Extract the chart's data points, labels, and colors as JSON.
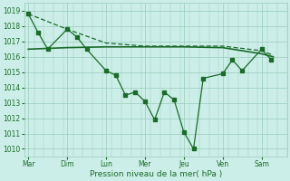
{
  "background_color": "#cceee8",
  "grid_color": "#99ccbb",
  "line_color": "#1a6b2a",
  "x_labels": [
    "Mar",
    "Dim",
    "Lun",
    "Mer",
    "Jeu",
    "Ven",
    "Sam"
  ],
  "xlabel": "Pression niveau de la mer( hPa )",
  "ylim": [
    1009.5,
    1019.5
  ],
  "yticks": [
    1010,
    1011,
    1012,
    1013,
    1014,
    1015,
    1016,
    1017,
    1018,
    1019
  ],
  "line1_x": [
    0.0,
    0.25,
    0.5,
    1.0,
    1.25,
    1.5,
    2.0,
    2.25,
    2.5,
    2.75,
    3.0,
    3.25,
    3.5,
    3.75,
    4.0,
    4.25,
    4.5,
    5.0,
    5.25,
    5.5,
    6.0,
    6.25
  ],
  "line1_y": [
    1018.8,
    1017.6,
    1016.5,
    1017.8,
    1017.3,
    1016.5,
    1015.1,
    1014.8,
    1013.5,
    1013.7,
    1013.1,
    1011.9,
    1013.7,
    1013.2,
    1011.1,
    1010.0,
    1014.6,
    1014.9,
    1015.8,
    1015.1,
    1016.5,
    1015.8
  ],
  "line2_x": [
    0.0,
    1.0,
    2.0,
    3.0,
    4.0,
    5.0,
    6.0,
    6.3
  ],
  "line2_y": [
    1016.5,
    1016.6,
    1016.65,
    1016.65,
    1016.65,
    1016.6,
    1016.2,
    1016.0
  ],
  "line3_x": [
    0.0,
    1.0,
    2.0,
    3.0,
    4.0,
    5.0,
    6.0,
    6.3
  ],
  "line3_y": [
    1018.8,
    1017.8,
    1016.9,
    1016.7,
    1016.7,
    1016.7,
    1016.4,
    1016.1
  ],
  "xlim": [
    -0.1,
    6.6
  ],
  "marker_size": 2.2,
  "line_width": 0.9
}
